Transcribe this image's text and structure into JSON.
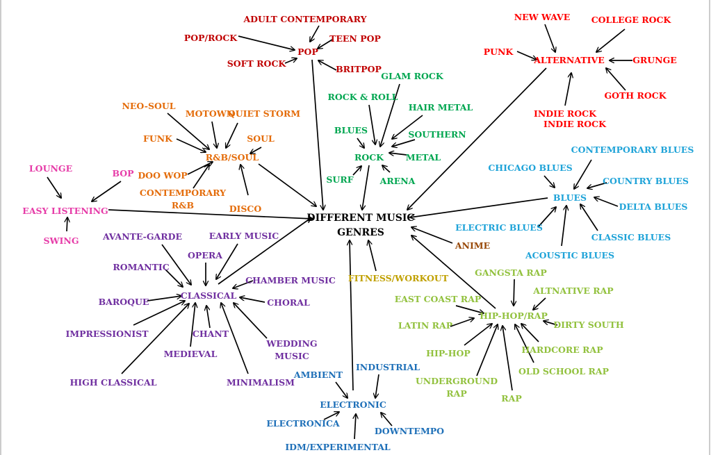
{
  "colors": {
    "pop": "#c00000",
    "alternative": "#ff0000",
    "rock": "#00a650",
    "rnb": "#e46c0a",
    "easy": "#e63ca8",
    "blues": "#1fa3d8",
    "classical": "#7030a0",
    "hiphop": "#92c13e",
    "electronic": "#1f70b8",
    "anime": "#984807",
    "fitness": "#c0a000",
    "center": "#000000"
  },
  "center": {
    "line1": "DIFFERENT MUSIC",
    "line2": "GENRES"
  },
  "labels": {
    "adult_contemporary": "ADULT CONTEMPORARY",
    "pop_rock": "POP/ROCK",
    "teen_pop": "TEEN POP",
    "pop": "POP",
    "soft_rock": "SOFT ROCK",
    "britpop": "BRITPOP",
    "new_wave": "NEW WAVE",
    "college_rock": "COLLEGE ROCK",
    "punk": "PUNK",
    "alternative": "ALTERNATIVE",
    "grunge": "GRUNGE",
    "goth_rock": "GOTH ROCK",
    "indie_rock_1": "INDIE ROCK",
    "indie_rock_2": "INDIE ROCK",
    "glam_rock": "GLAM ROCK",
    "rock_and_roll": "ROCK & ROLL",
    "hair_metal": "HAIR METAL",
    "blues_rock": "BLUES",
    "southern": "SOUTHERN",
    "rock": "ROCK",
    "metal": "METAL",
    "surf": "SURF",
    "arena": "ARENA",
    "neo_soul": "NEO-SOUL",
    "motown": "MOTOWN",
    "quiet_storm": "QUIET STORM",
    "funk": "FUNK",
    "soul": "SOUL",
    "rnb_soul": "R&B/SOUL",
    "doo_wop": "DOO WOP",
    "contemporary_rnb_1": "CONTEMPORARY",
    "contemporary_rnb_2": "R&B",
    "disco": "DISCO",
    "lounge": "LOUNGE",
    "bop": "BOP",
    "easy_listening": "EASY LISTENING",
    "swing": "SWING",
    "contemporary_blues": "CONTEMPORARY BLUES",
    "chicago_blues": "CHICAGO BLUES",
    "country_blues": "COUNTRY BLUES",
    "blues": "BLUES",
    "delta_blues": "DELTA BLUES",
    "electric_blues": "ELECTRIC BLUES",
    "classic_blues": "CLASSIC BLUES",
    "acoustic_blues": "ACOUSTIC BLUES",
    "anime": "ANIME",
    "fitness_workout": "FITNESS/WORKOUT",
    "avante_garde": "AVANTE-GARDE",
    "early_music": "EARLY MUSIC",
    "opera": "OPERA",
    "romantic": "ROMANTIC",
    "chamber_music": "CHAMBER MUSIC",
    "classical": "CLASSICAL",
    "baroque": "BAROQUE",
    "choral": "CHORAL",
    "impressionist": "IMPRESSIONIST",
    "chant": "CHANT",
    "wedding_music_1": "WEDDING",
    "wedding_music_2": "MUSIC",
    "medieval": "MEDIEVAL",
    "high_classical": "HIGH CLASSICAL",
    "minimalism": "MINIMALISM",
    "gangsta_rap": "GANGSTA RAP",
    "altnative_rap": "ALTNATIVE RAP",
    "east_coast_rap": "EAST COAST RAP",
    "hiphop_rap": "HIP-HOP/RAP",
    "latin_rap": "LATIN RAP",
    "dirty_south": "DIRTY SOUTH",
    "hardcore_rap": "HARDCORE RAP",
    "hip_hop": "HIP-HOP",
    "old_school_rap": "OLD SCHOOL RAP",
    "underground_rap_1": "UNDERGROUND",
    "underground_rap_2": "RAP",
    "rap": "RAP",
    "ambient": "AMBIENT",
    "industrial": "INDUSTRIAL",
    "electronic": "ELECTRONIC",
    "electronica": "ELECTRONICA",
    "downtempo": "DOWNTEMPO",
    "idm_experimental": "IDM/EXPERIMENTAL"
  },
  "links": [
    [
      "adult_contemporary",
      "pop"
    ],
    [
      "pop_rock",
      "pop"
    ],
    [
      "teen_pop",
      "pop"
    ],
    [
      "soft_rock",
      "pop"
    ],
    [
      "britpop",
      "pop"
    ],
    [
      "pop",
      "center"
    ],
    [
      "new_wave",
      "alternative"
    ],
    [
      "college_rock",
      "alternative"
    ],
    [
      "punk",
      "alternative"
    ],
    [
      "grunge",
      "alternative"
    ],
    [
      "goth_rock",
      "alternative"
    ],
    [
      "indie_rock",
      "alternative"
    ],
    [
      "alternative",
      "center"
    ],
    [
      "glam_rock",
      "rock"
    ],
    [
      "rock_and_roll",
      "rock"
    ],
    [
      "hair_metal",
      "rock"
    ],
    [
      "blues_rock",
      "rock"
    ],
    [
      "southern",
      "rock"
    ],
    [
      "metal",
      "rock"
    ],
    [
      "surf",
      "rock"
    ],
    [
      "arena",
      "rock"
    ],
    [
      "rock",
      "center"
    ],
    [
      "neo_soul",
      "rnb_soul"
    ],
    [
      "motown",
      "rnb_soul"
    ],
    [
      "quiet_storm",
      "rnb_soul"
    ],
    [
      "funk",
      "rnb_soul"
    ],
    [
      "soul",
      "rnb_soul"
    ],
    [
      "doo_wop",
      "rnb_soul"
    ],
    [
      "contemporary_rnb",
      "rnb_soul"
    ],
    [
      "disco",
      "rnb_soul"
    ],
    [
      "rnb_soul",
      "center"
    ],
    [
      "lounge",
      "easy_listening"
    ],
    [
      "bop",
      "easy_listening"
    ],
    [
      "swing",
      "easy_listening"
    ],
    [
      "easy_listening",
      "center"
    ],
    [
      "contemporary_blues",
      "blues"
    ],
    [
      "chicago_blues",
      "blues"
    ],
    [
      "country_blues",
      "blues"
    ],
    [
      "delta_blues",
      "blues"
    ],
    [
      "electric_blues",
      "blues"
    ],
    [
      "classic_blues",
      "blues"
    ],
    [
      "acoustic_blues",
      "blues"
    ],
    [
      "blues",
      "center"
    ],
    [
      "anime",
      "center"
    ],
    [
      "fitness_workout",
      "center"
    ],
    [
      "avante_garde",
      "classical"
    ],
    [
      "early_music",
      "classical"
    ],
    [
      "opera",
      "classical"
    ],
    [
      "romantic",
      "classical"
    ],
    [
      "chamber_music",
      "classical"
    ],
    [
      "baroque",
      "classical"
    ],
    [
      "choral",
      "classical"
    ],
    [
      "impressionist",
      "classical"
    ],
    [
      "chant",
      "classical"
    ],
    [
      "wedding_music",
      "classical"
    ],
    [
      "medieval",
      "classical"
    ],
    [
      "high_classical",
      "classical"
    ],
    [
      "minimalism",
      "classical"
    ],
    [
      "classical",
      "center"
    ],
    [
      "gangsta_rap",
      "hiphop_rap"
    ],
    [
      "altnative_rap",
      "hiphop_rap"
    ],
    [
      "east_coast_rap",
      "hiphop_rap"
    ],
    [
      "latin_rap",
      "hiphop_rap"
    ],
    [
      "dirty_south",
      "hiphop_rap"
    ],
    [
      "hardcore_rap",
      "hiphop_rap"
    ],
    [
      "hip_hop",
      "hiphop_rap"
    ],
    [
      "old_school_rap",
      "hiphop_rap"
    ],
    [
      "underground_rap",
      "hiphop_rap"
    ],
    [
      "rap",
      "hiphop_rap"
    ],
    [
      "hiphop_rap",
      "center"
    ],
    [
      "ambient",
      "electronic"
    ],
    [
      "industrial",
      "electronic"
    ],
    [
      "electronica",
      "electronic"
    ],
    [
      "downtempo",
      "electronic"
    ],
    [
      "idm_experimental",
      "electronic"
    ],
    [
      "electronic",
      "center"
    ]
  ]
}
